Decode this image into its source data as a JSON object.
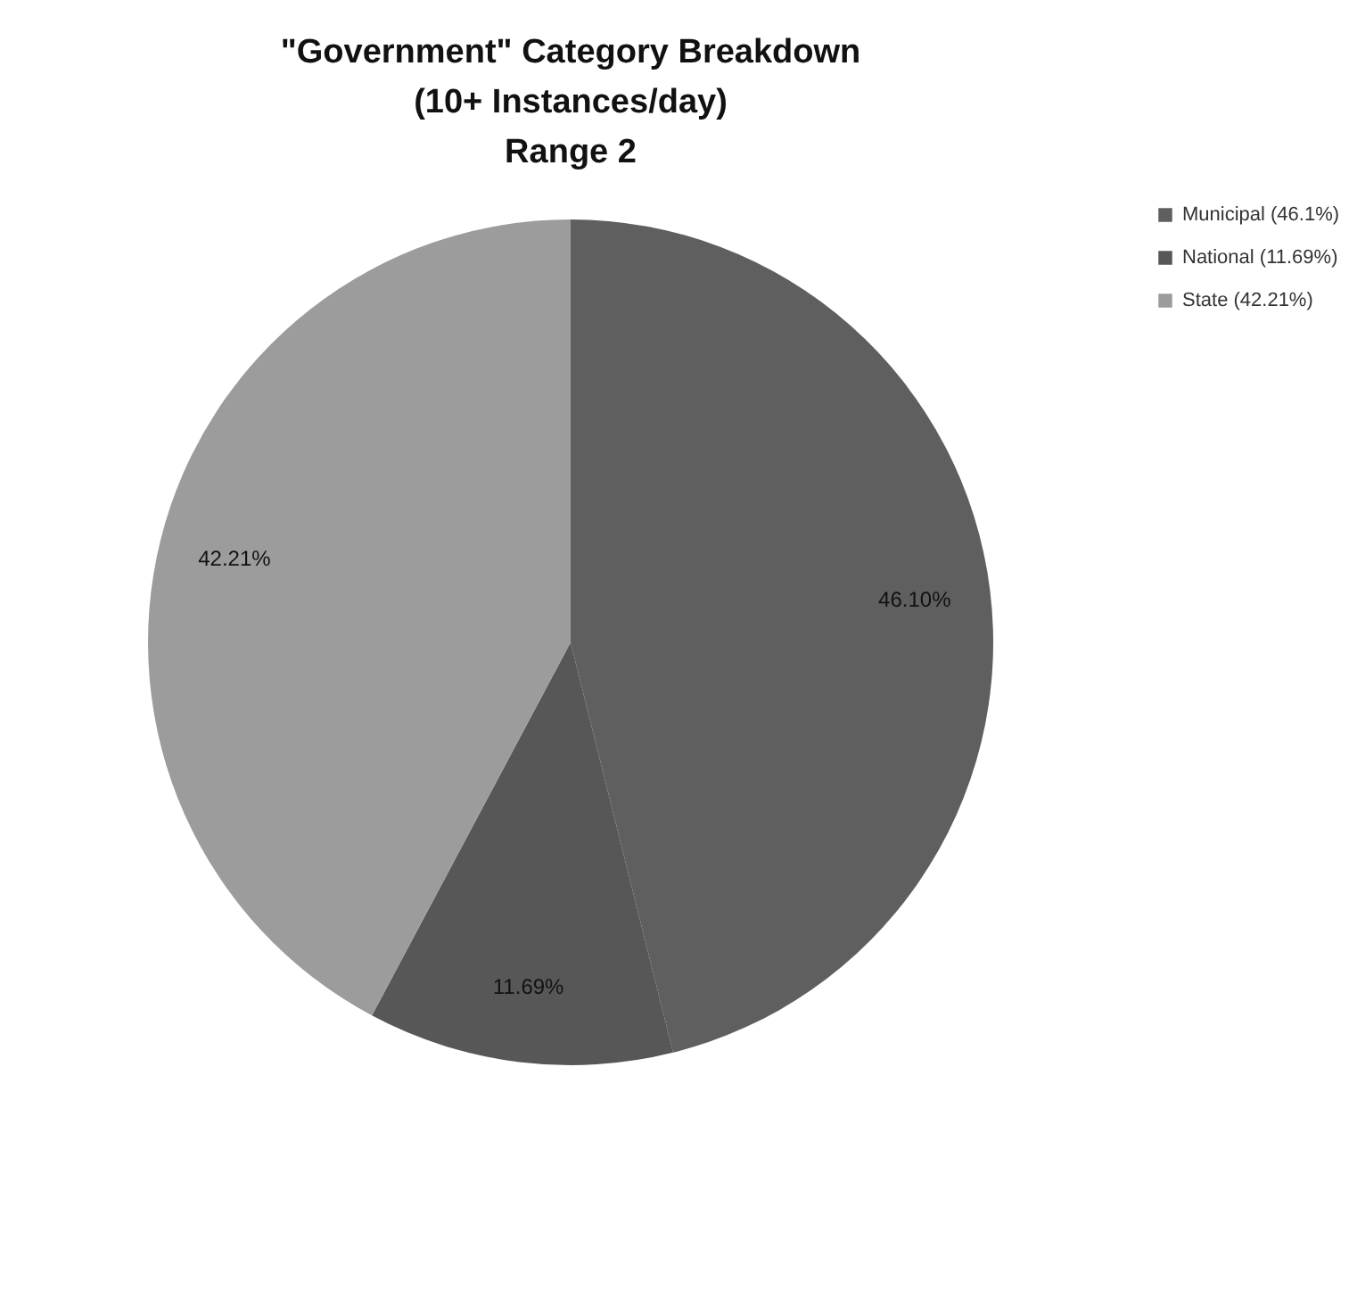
{
  "chart_data": {
    "type": "pie",
    "title": "\"Government\" Category Breakdown\n(10+ Instances/day)\nRange 2",
    "categories": [
      "Municipal (46.1%)",
      "National (11.69%)",
      "State (42.21%)"
    ],
    "values": [
      46.1,
      11.69,
      42.21
    ],
    "colors": [
      "#5f5f5f",
      "#575757",
      "#9c9c9c"
    ],
    "value_labels": [
      "46.10%",
      "11.69%",
      "42.21%"
    ],
    "legend": "right"
  }
}
